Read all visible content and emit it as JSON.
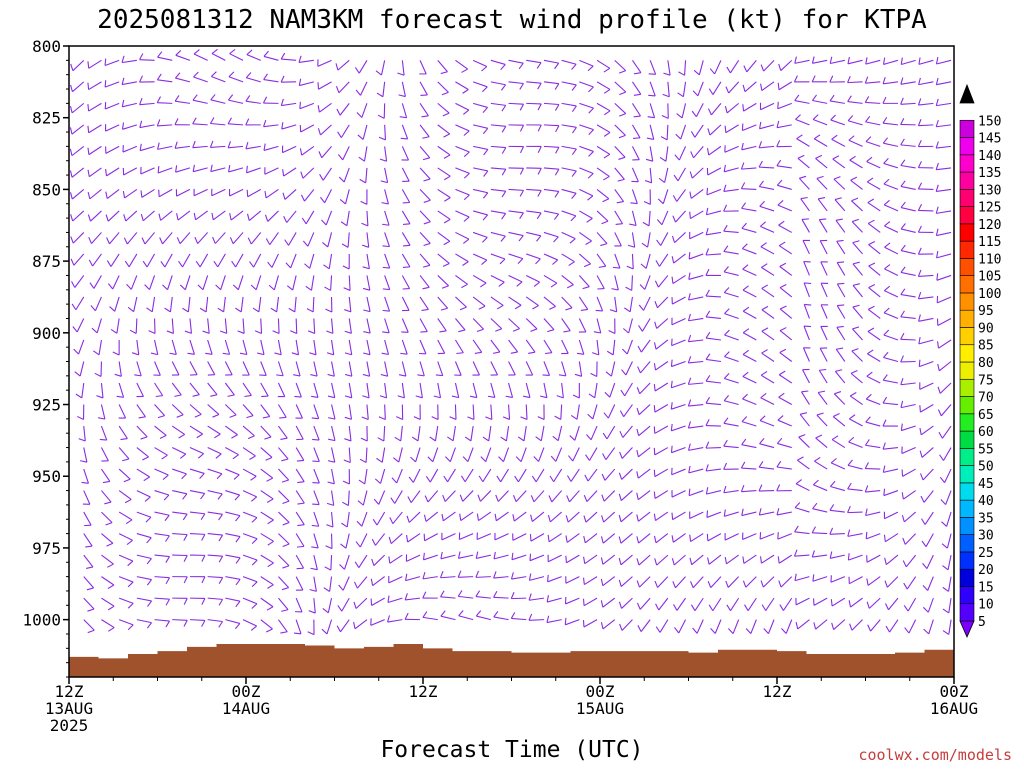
{
  "chart_data": {
    "type": "wind-barb-time-height",
    "title": "2025081312 NAM3KM forecast wind profile (kt) for KTPA",
    "xlabel": "Forecast Time (UTC)",
    "ylabel": "",
    "credit": "coolwx.com/models",
    "ylim": [
      800,
      1020
    ],
    "y_inverted": true,
    "y_ticks": [
      {
        "value": 800,
        "label": "800"
      },
      {
        "value": 825,
        "label": "825"
      },
      {
        "value": 850,
        "label": "850"
      },
      {
        "value": 875,
        "label": "875"
      },
      {
        "value": 900,
        "label": "900"
      },
      {
        "value": 925,
        "label": "925"
      },
      {
        "value": 950,
        "label": "950"
      },
      {
        "value": 975,
        "label": "975"
      },
      {
        "value": 1000,
        "label": "1000"
      }
    ],
    "x_range_hours": [
      0,
      60
    ],
    "x_ticks": [
      {
        "hour": 0,
        "lines": [
          "12Z",
          "13AUG",
          "2025"
        ]
      },
      {
        "hour": 12,
        "lines": [
          "00Z",
          "14AUG"
        ]
      },
      {
        "hour": 24,
        "lines": [
          "12Z"
        ]
      },
      {
        "hour": 36,
        "lines": [
          "00Z",
          "15AUG"
        ]
      },
      {
        "hour": 48,
        "lines": [
          "12Z"
        ]
      },
      {
        "hour": 60,
        "lines": [
          "00Z",
          "16AUG"
        ]
      }
    ],
    "barb_color": "#8a2be2",
    "terrain_color": "#a0522d",
    "surface_pressure": [
      [
        0,
        1013
      ],
      [
        2,
        1013.5
      ],
      [
        4,
        1012
      ],
      [
        6,
        1011
      ],
      [
        8,
        1009.5
      ],
      [
        10,
        1008.5
      ],
      [
        14,
        1008.5
      ],
      [
        16,
        1009
      ],
      [
        18,
        1010
      ],
      [
        20,
        1009.5
      ],
      [
        22,
        1008.5
      ],
      [
        24,
        1010
      ],
      [
        26,
        1011
      ],
      [
        30,
        1011.5
      ],
      [
        34,
        1011
      ],
      [
        38,
        1011
      ],
      [
        42,
        1011.5
      ],
      [
        44,
        1010.5
      ],
      [
        48,
        1011
      ],
      [
        50,
        1012
      ],
      [
        54,
        1012
      ],
      [
        56,
        1011.5
      ],
      [
        58,
        1010.5
      ],
      [
        60,
        1011
      ]
    ],
    "colorbar": {
      "levels": [
        "5",
        "10",
        "15",
        "20",
        "25",
        "30",
        "35",
        "40",
        "45",
        "50",
        "55",
        "60",
        "65",
        "70",
        "75",
        "80",
        "85",
        "90",
        "95",
        "100",
        "105",
        "110",
        "115",
        "120",
        "125",
        "130",
        "135",
        "140",
        "145",
        "150"
      ],
      "colors": [
        "#7b00ff",
        "#5500ff",
        "#3000ff",
        "#0000dd",
        "#0030ff",
        "#0060ff",
        "#0090ff",
        "#00b8ff",
        "#00dcee",
        "#00eebb",
        "#00ee88",
        "#00dd44",
        "#22ee22",
        "#66ee00",
        "#aaee00",
        "#eeee00",
        "#ffee00",
        "#ffd000",
        "#ffb000",
        "#ff9000",
        "#ff7000",
        "#ff5000",
        "#ff2800",
        "#ff0000",
        "#ff0040",
        "#ff0070",
        "#ff00a0",
        "#ff00cc",
        "#ee00ee",
        "#cc00dd"
      ],
      "top_color": "#000000"
    }
  }
}
